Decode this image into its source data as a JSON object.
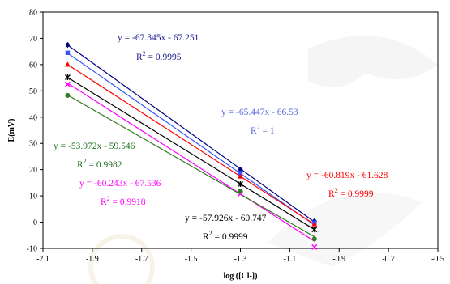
{
  "chart_data": {
    "type": "scatter",
    "xlabel": "log ([Cl-])",
    "ylabel": "E(mV)",
    "xlim": [
      -2.1,
      -0.5
    ],
    "ylim": [
      -10,
      80
    ],
    "x_ticks": [
      -2.1,
      -1.9,
      -1.7,
      -1.5,
      -1.3,
      -1.1,
      -0.9,
      -0.7,
      -0.5
    ],
    "x_tick_labels": [
      "-2.1",
      "-1.9",
      "-1.7",
      "-1.5",
      "-1.3",
      "-1.1",
      "-0.9",
      "-0.7",
      "-0.5"
    ],
    "y_ticks": [
      -10,
      0,
      10,
      20,
      30,
      40,
      50,
      60,
      70,
      80
    ],
    "y_tick_labels": [
      "-10",
      "0",
      "10",
      "20",
      "30",
      "40",
      "50",
      "60",
      "70",
      "80"
    ],
    "grid": false,
    "legend": false,
    "series": [
      {
        "marker": "diamond",
        "color": "#000080",
        "x": [
          -2.0,
          -1.3,
          -1.0
        ],
        "y": [
          67.5,
          20.0,
          0.4
        ],
        "fit": {
          "slope": -67.345,
          "intercept": -67.251
        },
        "equation": "y = -67.345x - 67.251",
        "r2_label": "R",
        "r2_value": "2",
        "r2_text": " = 0.9995",
        "label_color": "#1a1a8c"
      },
      {
        "marker": "square",
        "color": "#3355ff",
        "x": [
          -2.0,
          -1.3,
          -1.0
        ],
        "y": [
          64.5,
          18.7,
          -0.2
        ],
        "fit": {
          "slope": -65.447,
          "intercept": -66.53
        },
        "equation": "y = -65.447x - 66.53",
        "r2_label": "R",
        "r2_value": "2",
        "r2_text": " = 1",
        "label_color": "#5566dd"
      },
      {
        "marker": "triangle",
        "color": "#ff0000",
        "x": [
          -2.0,
          -1.3,
          -1.0
        ],
        "y": [
          60.0,
          17.4,
          -0.8
        ],
        "fit": {
          "slope": -60.819,
          "intercept": -61.628
        },
        "equation": "y = -60.819x - 61.628",
        "r2_label": "R",
        "r2_value": "2",
        "r2_text": " = 0.9999",
        "label_color": "#ff0000"
      },
      {
        "marker": "star",
        "color": "#000000",
        "x": [
          -2.0,
          -1.3,
          -1.0
        ],
        "y": [
          55.2,
          14.5,
          -2.8
        ],
        "fit": {
          "slope": -57.926,
          "intercept": -60.747
        },
        "equation": "y = -57.926x - 60.747",
        "r2_label": "R",
        "r2_value": "2",
        "r2_text": " = 0.9999",
        "label_color": "#000000"
      },
      {
        "marker": "x",
        "color": "#ff00ff",
        "x": [
          -2.0,
          -1.3,
          -1.0
        ],
        "y": [
          52.5,
          10.8,
          -9.5
        ],
        "fit": {
          "slope": -60.243,
          "intercept": -67.536
        },
        "equation": "y = -60.243x - 67.536",
        "r2_label": "R",
        "r2_value": "2",
        "r2_text": " = 0.9918",
        "label_color": "#ff00ff"
      },
      {
        "marker": "circle",
        "color": "#2e7d1e",
        "x": [
          -2.0,
          -1.3,
          -1.0
        ],
        "y": [
          48.3,
          11.8,
          -6.4
        ],
        "fit": {
          "slope": -53.972,
          "intercept": -59.546
        },
        "equation": "y = -53.972x - 59.546",
        "r2_label": "R",
        "r2_value": "2",
        "r2_text": " = 0.9982",
        "label_color": "#1e6e1e"
      }
    ]
  }
}
